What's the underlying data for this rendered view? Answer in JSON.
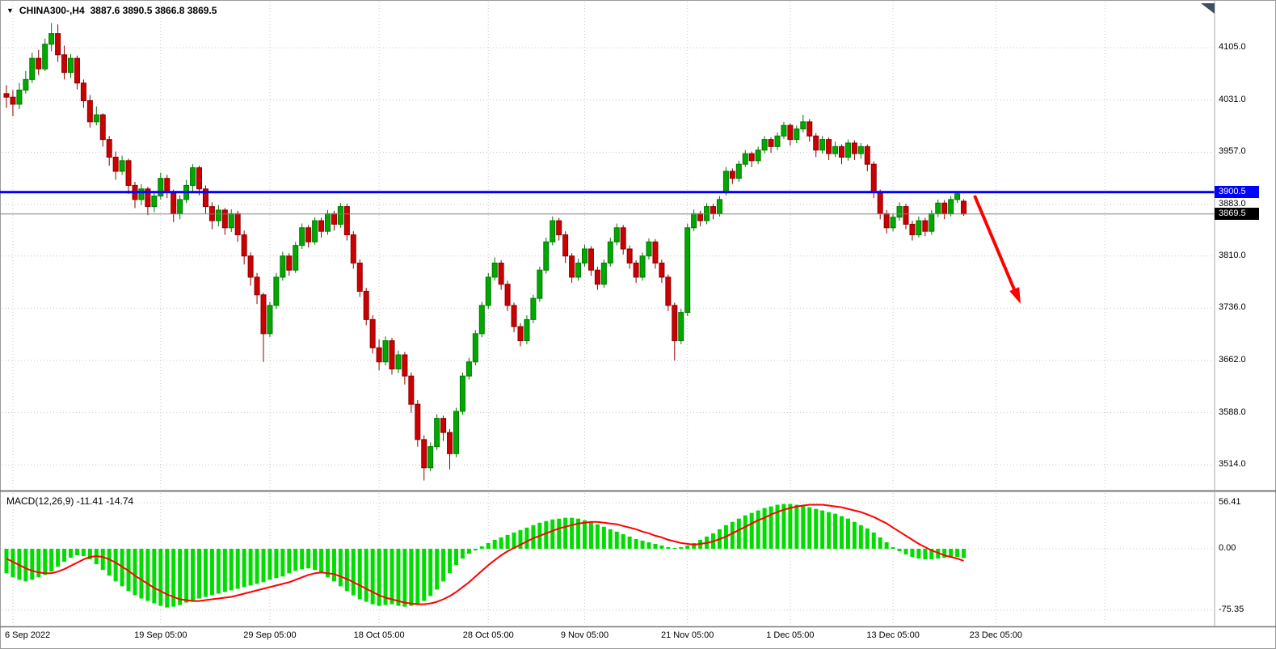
{
  "header": {
    "symbol": "CHINA300-,H4",
    "ohlc": "3887.6 3890.5 3866.8 3869.5"
  },
  "price_axis": {
    "labels": [
      "4105.0",
      "4031.0",
      "3957.0",
      "3883.0",
      "3810.0",
      "3736.0",
      "3662.0",
      "3588.0",
      "3514.0"
    ],
    "values": [
      4105.0,
      4031.0,
      3957.0,
      3883.0,
      3810.0,
      3736.0,
      3662.0,
      3588.0,
      3514.0
    ],
    "line_label": {
      "text": "3900.5",
      "value": 3900.5
    },
    "bid_label": {
      "text": "3869.5",
      "value": 3869.5
    }
  },
  "time_axis": {
    "labels": [
      "6 Sep 2022",
      "19 Sep 05:00",
      "29 Sep 05:00",
      "18 Oct 05:00",
      "28 Oct 05:00",
      "9 Nov 05:00",
      "21 Nov 05:00",
      "1 Dec 05:00",
      "13 Dec 05:00",
      "23 Dec 05:00"
    ],
    "label_indices": [
      1,
      24,
      41,
      58,
      75,
      90,
      106,
      122,
      138,
      154
    ],
    "grid_indices": [
      1,
      24,
      41,
      58,
      75,
      90,
      106,
      122,
      138,
      154,
      171
    ]
  },
  "macd": {
    "title": "MACD(12,26,9) -11.41 -14.74",
    "params": "12,26,9",
    "value": -11.41,
    "signal_value": -14.74,
    "axis_labels": [
      {
        "text": "56.41",
        "value": 56.41
      },
      {
        "text": "0.00",
        "value": 0
      },
      {
        "text": "-75.35",
        "value": -75.35
      }
    ]
  },
  "colors": {
    "bull": "#007800",
    "bull_fill": "#00A800",
    "bear": "#8B0000",
    "bear_fill": "#CC0000",
    "macd_histogram": "#00DC00",
    "macd_signal": "#FF0000",
    "hline": "#0000FF",
    "grid": "#C6C6C6",
    "bid_line": "#808080",
    "tag_blue_bg": "#0000FF",
    "tag_black_bg": "#000000",
    "arrow": "#FF0000"
  },
  "chart_data": {
    "type": "candlestick",
    "title": "CHINA300-,H4",
    "timeframe": "H4",
    "last_ohlc": {
      "open": 3887.6,
      "high": 3890.5,
      "low": 3866.8,
      "close": 3869.5
    },
    "ylim": [
      3480,
      4144
    ],
    "grid": true,
    "candles": [
      [
        4040,
        4052,
        4020,
        4035
      ],
      [
        4035,
        4045,
        4008,
        4025
      ],
      [
        4025,
        4055,
        4018,
        4045
      ],
      [
        4045,
        4072,
        4040,
        4060
      ],
      [
        4060,
        4098,
        4055,
        4090
      ],
      [
        4090,
        4102,
        4066,
        4075
      ],
      [
        4075,
        4118,
        4072,
        4110
      ],
      [
        4110,
        4140,
        4100,
        4125
      ],
      [
        4125,
        4138,
        4085,
        4095
      ],
      [
        4095,
        4108,
        4060,
        4070
      ],
      [
        4070,
        4096,
        4062,
        4090
      ],
      [
        4090,
        4094,
        4046,
        4055
      ],
      [
        4055,
        4060,
        4020,
        4030
      ],
      [
        4030,
        4038,
        3992,
        4000
      ],
      [
        4000,
        4022,
        3995,
        4010
      ],
      [
        4010,
        4012,
        3965,
        3975
      ],
      [
        3975,
        3980,
        3938,
        3950
      ],
      [
        3950,
        3958,
        3918,
        3930
      ],
      [
        3930,
        3952,
        3925,
        3945
      ],
      [
        3945,
        3948,
        3898,
        3910
      ],
      [
        3910,
        3915,
        3878,
        3890
      ],
      [
        3890,
        3912,
        3882,
        3905
      ],
      [
        3905,
        3908,
        3868,
        3880
      ],
      [
        3880,
        3902,
        3872,
        3895
      ],
      [
        3895,
        3928,
        3890,
        3920
      ],
      [
        3920,
        3925,
        3892,
        3900
      ],
      [
        3900,
        3904,
        3858,
        3870
      ],
      [
        3870,
        3896,
        3862,
        3890
      ],
      [
        3890,
        3918,
        3885,
        3910
      ],
      [
        3910,
        3940,
        3902,
        3935
      ],
      [
        3935,
        3938,
        3896,
        3905
      ],
      [
        3905,
        3910,
        3870,
        3880
      ],
      [
        3880,
        3886,
        3848,
        3860
      ],
      [
        3860,
        3882,
        3852,
        3875
      ],
      [
        3875,
        3878,
        3840,
        3850
      ],
      [
        3850,
        3876,
        3844,
        3870
      ],
      [
        3870,
        3874,
        3830,
        3840
      ],
      [
        3840,
        3846,
        3798,
        3810
      ],
      [
        3810,
        3815,
        3768,
        3780
      ],
      [
        3780,
        3786,
        3742,
        3755
      ],
      [
        3755,
        3758,
        3660,
        3700
      ],
      [
        3700,
        3745,
        3695,
        3740
      ],
      [
        3740,
        3786,
        3735,
        3780
      ],
      [
        3780,
        3816,
        3775,
        3810
      ],
      [
        3810,
        3814,
        3782,
        3790
      ],
      [
        3790,
        3830,
        3786,
        3825
      ],
      [
        3825,
        3856,
        3820,
        3850
      ],
      [
        3850,
        3854,
        3822,
        3830
      ],
      [
        3830,
        3865,
        3826,
        3860
      ],
      [
        3860,
        3864,
        3836,
        3845
      ],
      [
        3845,
        3875,
        3840,
        3870
      ],
      [
        3870,
        3874,
        3846,
        3855
      ],
      [
        3855,
        3885,
        3850,
        3880
      ],
      [
        3880,
        3884,
        3832,
        3840
      ],
      [
        3840,
        3845,
        3792,
        3800
      ],
      [
        3800,
        3805,
        3752,
        3760
      ],
      [
        3760,
        3765,
        3712,
        3720
      ],
      [
        3720,
        3726,
        3672,
        3680
      ],
      [
        3680,
        3692,
        3648,
        3660
      ],
      [
        3660,
        3696,
        3655,
        3690
      ],
      [
        3690,
        3694,
        3642,
        3650
      ],
      [
        3650,
        3676,
        3644,
        3670
      ],
      [
        3670,
        3674,
        3628,
        3640
      ],
      [
        3640,
        3645,
        3588,
        3600
      ],
      [
        3600,
        3606,
        3540,
        3550
      ],
      [
        3550,
        3556,
        3492,
        3510
      ],
      [
        3510,
        3546,
        3505,
        3540
      ],
      [
        3540,
        3586,
        3535,
        3580
      ],
      [
        3580,
        3584,
        3548,
        3560
      ],
      [
        3560,
        3565,
        3508,
        3530
      ],
      [
        3530,
        3595,
        3525,
        3590
      ],
      [
        3590,
        3645,
        3585,
        3640
      ],
      [
        3640,
        3666,
        3635,
        3660
      ],
      [
        3660,
        3705,
        3655,
        3700
      ],
      [
        3700,
        3745,
        3695,
        3740
      ],
      [
        3740,
        3786,
        3735,
        3780
      ],
      [
        3780,
        3808,
        3775,
        3800
      ],
      [
        3800,
        3804,
        3762,
        3770
      ],
      [
        3770,
        3775,
        3732,
        3740
      ],
      [
        3740,
        3744,
        3702,
        3710
      ],
      [
        3710,
        3715,
        3682,
        3690
      ],
      [
        3690,
        3726,
        3685,
        3720
      ],
      [
        3720,
        3755,
        3715,
        3750
      ],
      [
        3750,
        3795,
        3745,
        3790
      ],
      [
        3790,
        3836,
        3785,
        3830
      ],
      [
        3830,
        3866,
        3825,
        3860
      ],
      [
        3860,
        3864,
        3832,
        3840
      ],
      [
        3840,
        3845,
        3800,
        3810
      ],
      [
        3810,
        3814,
        3772,
        3780
      ],
      [
        3780,
        3806,
        3775,
        3800
      ],
      [
        3800,
        3826,
        3795,
        3820
      ],
      [
        3820,
        3824,
        3782,
        3790
      ],
      [
        3790,
        3795,
        3762,
        3770
      ],
      [
        3770,
        3805,
        3765,
        3800
      ],
      [
        3800,
        3836,
        3795,
        3830
      ],
      [
        3830,
        3856,
        3825,
        3850
      ],
      [
        3850,
        3854,
        3812,
        3820
      ],
      [
        3820,
        3825,
        3792,
        3800
      ],
      [
        3800,
        3804,
        3772,
        3780
      ],
      [
        3780,
        3815,
        3775,
        3810
      ],
      [
        3810,
        3835,
        3805,
        3830
      ],
      [
        3830,
        3834,
        3792,
        3800
      ],
      [
        3800,
        3805,
        3772,
        3780
      ],
      [
        3780,
        3784,
        3732,
        3740
      ],
      [
        3740,
        3744,
        3662,
        3690
      ],
      [
        3690,
        3735,
        3685,
        3730
      ],
      [
        3730,
        3856,
        3725,
        3850
      ],
      [
        3850,
        3876,
        3845,
        3870
      ],
      [
        3870,
        3874,
        3852,
        3860
      ],
      [
        3860,
        3885,
        3855,
        3880
      ],
      [
        3880,
        3884,
        3862,
        3870
      ],
      [
        3870,
        3895,
        3866,
        3890
      ],
      [
        3900,
        3936,
        3896,
        3930
      ],
      [
        3930,
        3934,
        3912,
        3920
      ],
      [
        3920,
        3945,
        3915,
        3940
      ],
      [
        3940,
        3960,
        3936,
        3955
      ],
      [
        3955,
        3958,
        3936,
        3945
      ],
      [
        3945,
        3965,
        3940,
        3960
      ],
      [
        3960,
        3980,
        3955,
        3975
      ],
      [
        3975,
        3978,
        3956,
        3965
      ],
      [
        3965,
        3985,
        3960,
        3980
      ],
      [
        3980,
        4000,
        3976,
        3995
      ],
      [
        3995,
        3998,
        3966,
        3975
      ],
      [
        3975,
        3995,
        3970,
        3990
      ],
      [
        3990,
        4010,
        3985,
        4000
      ],
      [
        4000,
        4004,
        3972,
        3980
      ],
      [
        3980,
        3984,
        3950,
        3960
      ],
      [
        3960,
        3980,
        3955,
        3975
      ],
      [
        3975,
        3978,
        3946,
        3955
      ],
      [
        3955,
        3972,
        3950,
        3965
      ],
      [
        3965,
        3968,
        3940,
        3950
      ],
      [
        3950,
        3975,
        3945,
        3970
      ],
      [
        3970,
        3974,
        3946,
        3955
      ],
      [
        3955,
        3970,
        3948,
        3965
      ],
      [
        3965,
        3968,
        3930,
        3940
      ],
      [
        3940,
        3944,
        3892,
        3900
      ],
      [
        3900,
        3904,
        3862,
        3870
      ],
      [
        3870,
        3875,
        3842,
        3850
      ],
      [
        3850,
        3870,
        3845,
        3865
      ],
      [
        3865,
        3886,
        3860,
        3880
      ],
      [
        3880,
        3884,
        3848,
        3855
      ],
      [
        3855,
        3860,
        3832,
        3840
      ],
      [
        3840,
        3866,
        3836,
        3860
      ],
      [
        3860,
        3864,
        3838,
        3845
      ],
      [
        3845,
        3875,
        3840,
        3870
      ],
      [
        3870,
        3890,
        3865,
        3885
      ],
      [
        3885,
        3889,
        3862,
        3870
      ],
      [
        3870,
        3895,
        3866,
        3890
      ],
      [
        3890,
        3902,
        3885,
        3898
      ],
      [
        3887.6,
        3890.5,
        3866.8,
        3869.5
      ]
    ],
    "macd": {
      "ylim": [
        -75.35,
        56.41
      ],
      "histogram": [
        -30,
        -35,
        -38,
        -40,
        -38,
        -35,
        -32,
        -28,
        -22,
        -16,
        -11,
        -8,
        -9,
        -13,
        -19,
        -26,
        -33,
        -40,
        -46,
        -52,
        -57,
        -61,
        -64,
        -67,
        -70,
        -72,
        -71,
        -69,
        -66,
        -63,
        -61,
        -59,
        -57,
        -55,
        -53,
        -51,
        -49,
        -47,
        -45,
        -43,
        -41,
        -38,
        -36,
        -34,
        -30,
        -27,
        -25,
        -24,
        -26,
        -30,
        -35,
        -40,
        -46,
        -52,
        -57,
        -62,
        -65,
        -68,
        -70,
        -69,
        -68,
        -70,
        -71,
        -70,
        -68,
        -64,
        -58,
        -50,
        -40,
        -30,
        -20,
        -12,
        -6,
        -2,
        3,
        7,
        11,
        14,
        17,
        20,
        23,
        26,
        29,
        32,
        34,
        36,
        37,
        38,
        38,
        37,
        35,
        33,
        30,
        27,
        24,
        21,
        18,
        15,
        12,
        10,
        8,
        6,
        4,
        2,
        1,
        2,
        4,
        7,
        11,
        15,
        19,
        24,
        29,
        33,
        37,
        41,
        44,
        47,
        50,
        52,
        54,
        55,
        55,
        54,
        53,
        51,
        49,
        47,
        45,
        43,
        40,
        37,
        33,
        29,
        25,
        20,
        14,
        8,
        2,
        -3,
        -7,
        -10,
        -12,
        -13,
        -13,
        -12,
        -11,
        -10,
        -10,
        -11.41
      ],
      "signal": [
        -12,
        -16,
        -20,
        -24,
        -27,
        -29,
        -30,
        -30,
        -28,
        -25,
        -21,
        -17,
        -13,
        -10,
        -9,
        -10,
        -13,
        -17,
        -22,
        -27,
        -33,
        -38,
        -43,
        -48,
        -52,
        -56,
        -59,
        -62,
        -63,
        -64,
        -64,
        -63,
        -62,
        -61,
        -60,
        -59,
        -57,
        -55,
        -53,
        -51,
        -49,
        -47,
        -45,
        -43,
        -41,
        -38,
        -35,
        -32,
        -30,
        -29,
        -30,
        -31,
        -34,
        -37,
        -41,
        -45,
        -49,
        -53,
        -57,
        -60,
        -62,
        -64,
        -66,
        -67,
        -68,
        -68,
        -67,
        -65,
        -62,
        -58,
        -53,
        -47,
        -41,
        -34,
        -27,
        -20,
        -14,
        -8,
        -3,
        1,
        5,
        9,
        13,
        16,
        19,
        22,
        25,
        27,
        29,
        31,
        32,
        33,
        33,
        32,
        31,
        30,
        28,
        26,
        24,
        21,
        19,
        16,
        14,
        11,
        9,
        7,
        6,
        5,
        6,
        7,
        9,
        12,
        15,
        19,
        23,
        27,
        31,
        35,
        38,
        42,
        45,
        48,
        50,
        52,
        53,
        54,
        54,
        54,
        53,
        52,
        51,
        49,
        47,
        45,
        42,
        39,
        35,
        31,
        26,
        21,
        16,
        11,
        6,
        2,
        -2,
        -5,
        -8,
        -10,
        -12,
        -14.74
      ]
    },
    "overlays": {
      "horizontal_line": 3900.5,
      "current_price": 3869.5,
      "trend_arrow": "red arrow pointing down-right below the 3900.5 line"
    }
  }
}
